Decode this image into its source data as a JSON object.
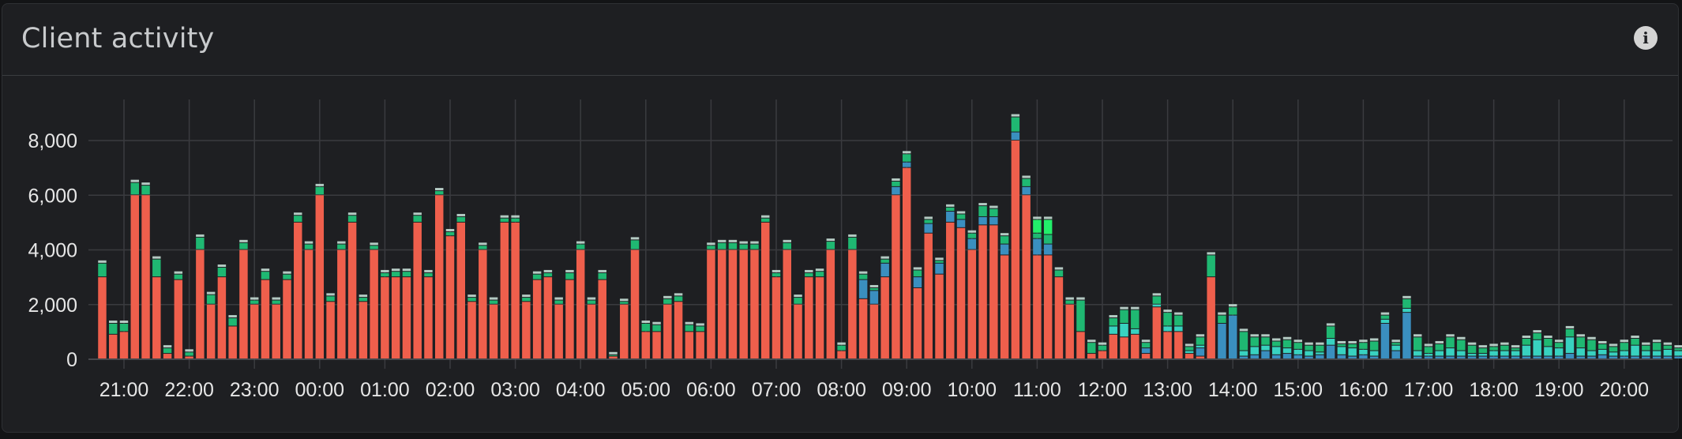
{
  "panel": {
    "title": "Client activity",
    "info_icon": "info-icon",
    "info_glyph": "i"
  },
  "colors": {
    "series_primary": "#ef5f4c",
    "series_blue": "#3a8fbf",
    "series_teal": "#38d2c0",
    "series_green": "#1fb872",
    "series_bright_green": "#22ee6a",
    "gridline": "#3a3b3f"
  },
  "chart_data": {
    "type": "bar",
    "stacked": true,
    "ylim": [
      0,
      9000
    ],
    "yticks": [
      0,
      2000,
      4000,
      6000,
      8000
    ],
    "ytick_labels": [
      "0",
      "2,000",
      "4,000",
      "6,000",
      "8,000"
    ],
    "xtick_labels": [
      "21:00",
      "22:00",
      "23:00",
      "00:00",
      "01:00",
      "02:00",
      "03:00",
      "04:00",
      "05:00",
      "06:00",
      "07:00",
      "08:00",
      "09:00",
      "10:00",
      "11:00",
      "12:00",
      "13:00",
      "14:00",
      "15:00",
      "16:00",
      "17:00",
      "18:00",
      "19:00",
      "20:00"
    ],
    "grid": true,
    "bars_per_hour": 6,
    "bars_before_first_tick": 2,
    "series_colors": [
      "#ef5f4c",
      "#3a8fbf",
      "#38d2c0",
      "#1fb872",
      "#22ee6a"
    ],
    "bars": [
      [
        3000,
        0,
        0,
        500,
        0
      ],
      [
        900,
        0,
        0,
        400,
        0
      ],
      [
        1000,
        0,
        0,
        300,
        0
      ],
      [
        6000,
        0,
        0,
        450,
        0
      ],
      [
        6000,
        0,
        0,
        350,
        0
      ],
      [
        3000,
        0,
        0,
        650,
        0
      ],
      [
        200,
        0,
        0,
        200,
        0
      ],
      [
        2900,
        0,
        0,
        200,
        0
      ],
      [
        100,
        0,
        0,
        150,
        0
      ],
      [
        4000,
        0,
        0,
        450,
        0
      ],
      [
        2000,
        0,
        0,
        350,
        0
      ],
      [
        3000,
        0,
        0,
        350,
        0
      ],
      [
        1200,
        0,
        0,
        300,
        0
      ],
      [
        4000,
        0,
        0,
        250,
        0
      ],
      [
        2000,
        0,
        0,
        150,
        0
      ],
      [
        2900,
        0,
        0,
        300,
        0
      ],
      [
        2000,
        0,
        0,
        150,
        0
      ],
      [
        2900,
        0,
        0,
        200,
        0
      ],
      [
        5000,
        0,
        0,
        250,
        0
      ],
      [
        4000,
        0,
        0,
        200,
        0
      ],
      [
        6000,
        0,
        0,
        300,
        0
      ],
      [
        2100,
        0,
        0,
        200,
        0
      ],
      [
        4000,
        0,
        0,
        200,
        0
      ],
      [
        5000,
        0,
        0,
        250,
        0
      ],
      [
        2100,
        0,
        0,
        150,
        0
      ],
      [
        4000,
        0,
        0,
        150,
        0
      ],
      [
        3000,
        0,
        0,
        150,
        0
      ],
      [
        3000,
        0,
        0,
        200,
        0
      ],
      [
        3000,
        0,
        0,
        200,
        0
      ],
      [
        5000,
        0,
        0,
        250,
        0
      ],
      [
        3000,
        0,
        0,
        150,
        0
      ],
      [
        6000,
        0,
        0,
        150,
        0
      ],
      [
        4500,
        0,
        0,
        150,
        0
      ],
      [
        5000,
        0,
        0,
        200,
        0
      ],
      [
        2100,
        0,
        0,
        150,
        0
      ],
      [
        4000,
        0,
        0,
        150,
        0
      ],
      [
        2000,
        0,
        0,
        150,
        0
      ],
      [
        5000,
        0,
        0,
        150,
        0
      ],
      [
        5000,
        0,
        0,
        150,
        0
      ],
      [
        2100,
        0,
        0,
        150,
        0
      ],
      [
        2900,
        0,
        0,
        200,
        0
      ],
      [
        3000,
        0,
        0,
        150,
        0
      ],
      [
        2000,
        0,
        0,
        150,
        0
      ],
      [
        2900,
        0,
        0,
        250,
        0
      ],
      [
        4000,
        0,
        0,
        200,
        0
      ],
      [
        2000,
        0,
        0,
        150,
        0
      ],
      [
        2900,
        0,
        0,
        250,
        0
      ],
      [
        100,
        0,
        0,
        50,
        0
      ],
      [
        2000,
        0,
        0,
        100,
        0
      ],
      [
        4000,
        0,
        0,
        350,
        0
      ],
      [
        1000,
        0,
        0,
        300,
        0
      ],
      [
        1000,
        0,
        0,
        250,
        0
      ],
      [
        2000,
        0,
        0,
        200,
        0
      ],
      [
        2100,
        0,
        0,
        200,
        0
      ],
      [
        1000,
        0,
        0,
        250,
        0
      ],
      [
        1000,
        0,
        0,
        200,
        0
      ],
      [
        4000,
        0,
        0,
        150,
        0
      ],
      [
        4000,
        0,
        0,
        250,
        0
      ],
      [
        4000,
        0,
        0,
        250,
        0
      ],
      [
        4000,
        0,
        0,
        200,
        0
      ],
      [
        4000,
        0,
        0,
        200,
        0
      ],
      [
        5000,
        0,
        0,
        150,
        0
      ],
      [
        3000,
        0,
        0,
        150,
        0
      ],
      [
        4000,
        0,
        0,
        250,
        0
      ],
      [
        2000,
        0,
        0,
        250,
        0
      ],
      [
        3000,
        0,
        0,
        150,
        0
      ],
      [
        3000,
        0,
        0,
        200,
        0
      ],
      [
        4000,
        0,
        0,
        300,
        0
      ],
      [
        300,
        0,
        0,
        200,
        0
      ],
      [
        4000,
        0,
        0,
        450,
        0
      ],
      [
        2200,
        700,
        0,
        200,
        0
      ],
      [
        2000,
        500,
        0,
        100,
        0
      ],
      [
        3000,
        500,
        0,
        150,
        0
      ],
      [
        6000,
        300,
        0,
        200,
        0
      ],
      [
        7000,
        200,
        0,
        300,
        0
      ],
      [
        2600,
        400,
        0,
        250,
        0
      ],
      [
        4600,
        350,
        0,
        150,
        0
      ],
      [
        3100,
        400,
        0,
        100,
        0
      ],
      [
        5000,
        400,
        0,
        150,
        0
      ],
      [
        4800,
        300,
        0,
        200,
        0
      ],
      [
        4000,
        400,
        0,
        200,
        0
      ],
      [
        4900,
        300,
        0,
        400,
        0
      ],
      [
        4900,
        300,
        0,
        300,
        0
      ],
      [
        3800,
        400,
        0,
        300,
        0
      ],
      [
        8000,
        300,
        0,
        550,
        0
      ],
      [
        6000,
        300,
        0,
        300,
        0
      ],
      [
        3800,
        600,
        0,
        200,
        500
      ],
      [
        3800,
        400,
        0,
        350,
        550
      ],
      [
        3000,
        0,
        0,
        250,
        0
      ],
      [
        2000,
        0,
        0,
        150,
        0
      ],
      [
        1000,
        0,
        0,
        1150,
        0
      ],
      [
        200,
        0,
        0,
        400,
        0
      ],
      [
        300,
        0,
        0,
        200,
        0
      ],
      [
        900,
        0,
        300,
        300,
        0
      ],
      [
        800,
        0,
        500,
        500,
        0
      ],
      [
        900,
        0,
        200,
        700,
        0
      ],
      [
        200,
        200,
        0,
        200,
        0
      ],
      [
        1900,
        0,
        100,
        300,
        0
      ],
      [
        1000,
        0,
        200,
        500,
        0
      ],
      [
        1000,
        0,
        200,
        400,
        0
      ],
      [
        200,
        0,
        100,
        150,
        0
      ],
      [
        100,
        300,
        100,
        300,
        0
      ],
      [
        3000,
        0,
        0,
        800,
        0
      ],
      [
        0,
        1300,
        0,
        300,
        0
      ],
      [
        0,
        1600,
        0,
        300,
        0
      ],
      [
        0,
        100,
        200,
        700,
        0
      ],
      [
        0,
        150,
        300,
        350,
        0
      ],
      [
        0,
        300,
        200,
        300,
        0
      ],
      [
        0,
        150,
        300,
        200,
        0
      ],
      [
        0,
        200,
        200,
        300,
        0
      ],
      [
        0,
        150,
        200,
        250,
        0
      ],
      [
        0,
        100,
        200,
        200,
        0
      ],
      [
        0,
        150,
        100,
        250,
        0
      ],
      [
        0,
        500,
        250,
        450,
        0
      ],
      [
        0,
        150,
        300,
        100,
        0
      ],
      [
        0,
        100,
        300,
        150,
        0
      ],
      [
        0,
        150,
        200,
        250,
        0
      ],
      [
        0,
        100,
        200,
        350,
        0
      ],
      [
        0,
        1300,
        150,
        150,
        0
      ],
      [
        0,
        300,
        200,
        100,
        0
      ],
      [
        0,
        1700,
        150,
        350,
        0
      ],
      [
        0,
        100,
        200,
        500,
        0
      ],
      [
        0,
        100,
        100,
        250,
        0
      ],
      [
        0,
        100,
        200,
        250,
        0
      ],
      [
        0,
        100,
        300,
        400,
        0
      ],
      [
        0,
        100,
        200,
        400,
        0
      ],
      [
        0,
        100,
        100,
        300,
        0
      ],
      [
        0,
        100,
        100,
        200,
        0
      ],
      [
        0,
        100,
        200,
        150,
        0
      ],
      [
        0,
        100,
        200,
        200,
        0
      ],
      [
        0,
        100,
        200,
        100,
        0
      ],
      [
        0,
        100,
        400,
        250,
        0
      ],
      [
        0,
        100,
        600,
        250,
        0
      ],
      [
        0,
        100,
        350,
        300,
        0
      ],
      [
        0,
        100,
        300,
        200,
        0
      ],
      [
        0,
        200,
        600,
        300,
        0
      ],
      [
        0,
        100,
        300,
        400,
        0
      ],
      [
        0,
        100,
        200,
        400,
        0
      ],
      [
        0,
        150,
        200,
        200,
        0
      ],
      [
        0,
        100,
        150,
        200,
        0
      ],
      [
        0,
        100,
        200,
        300,
        0
      ],
      [
        0,
        100,
        400,
        250,
        0
      ],
      [
        0,
        100,
        200,
        200,
        0
      ],
      [
        0,
        100,
        200,
        300,
        0
      ],
      [
        0,
        100,
        250,
        150,
        0
      ],
      [
        0,
        100,
        200,
        100,
        0
      ]
    ]
  }
}
